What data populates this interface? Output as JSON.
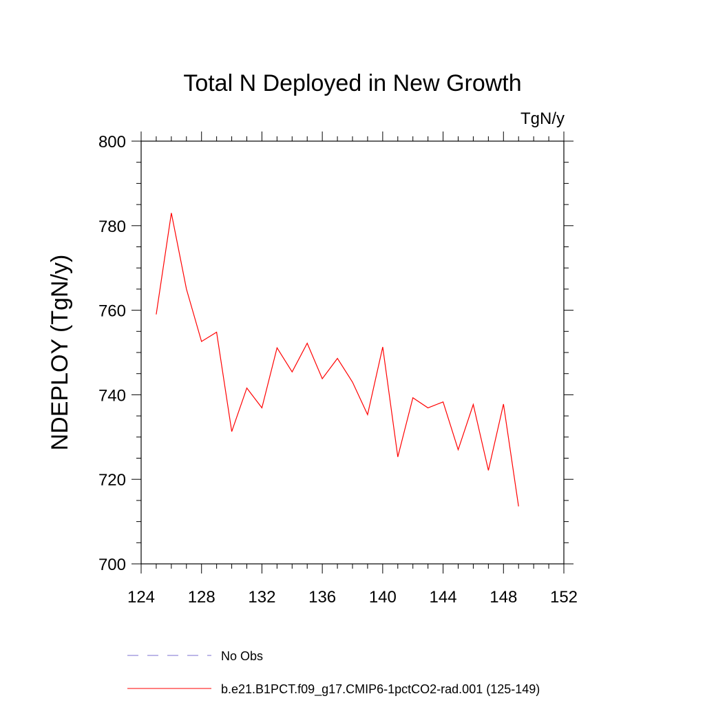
{
  "chart_data": {
    "type": "line",
    "title": "Total N Deployed in New Growth",
    "units": "TgN/y",
    "ylabel": "NDEPLOY  (TgN/y)",
    "xlabel": "",
    "xlim": [
      124,
      152
    ],
    "ylim": [
      700,
      800
    ],
    "x_ticks": [
      124,
      128,
      132,
      136,
      140,
      144,
      148,
      152
    ],
    "y_ticks": [
      700,
      720,
      740,
      760,
      780,
      800
    ],
    "grid": false,
    "legend_position": "bottom",
    "series": [
      {
        "name": "No Obs",
        "color": "#7b6fd0",
        "dash": "dashed",
        "x": [],
        "values": []
      },
      {
        "name": "b.e21.B1PCT.f09_g17.CMIP6-1pctCO2-rad.001 (125-149)",
        "color": "#ff0000",
        "dash": "solid",
        "x": [
          125,
          126,
          127,
          128,
          129,
          130,
          131,
          132,
          133,
          134,
          135,
          136,
          137,
          138,
          139,
          140,
          141,
          142,
          143,
          144,
          145,
          146,
          147,
          148,
          149
        ],
        "values": [
          759.0,
          783.0,
          765.0,
          752.6,
          754.8,
          731.3,
          741.6,
          736.9,
          751.1,
          745.4,
          752.2,
          743.8,
          748.6,
          743.0,
          735.3,
          751.3,
          725.3,
          739.3,
          736.9,
          738.3,
          727.0,
          737.7,
          722.1,
          737.8,
          713.6
        ]
      }
    ]
  }
}
